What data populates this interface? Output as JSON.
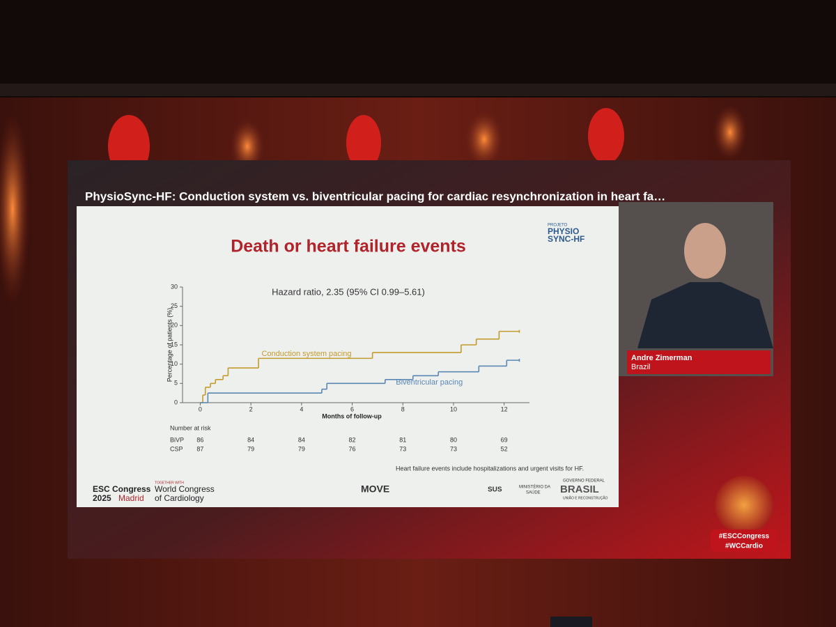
{
  "slide_header": "PhysioSync-HF: Conduction system vs. biventricular pacing for cardiac resynchronization in heart fa…",
  "chart_data": {
    "type": "line",
    "drawstyle": "steps-post",
    "title": "Death or heart failure events",
    "annotation": "Hazard ratio, 2.35 (95% CI 0.99–5.61)",
    "x_label": "Months of follow-up",
    "y_label": "Percentage of patients (%)",
    "xlim": [
      -0.7,
      13.0
    ],
    "xticks": [
      0,
      2,
      4,
      6,
      8,
      10,
      12
    ],
    "ylim": [
      0,
      30
    ],
    "yticks": [
      0,
      5,
      10,
      15,
      20,
      25,
      30
    ],
    "grid": false,
    "series": [
      {
        "name": "Conduction system pacing",
        "color": "#c39a2c",
        "x": [
          0,
          0.1,
          0.2,
          0.4,
          0.6,
          0.9,
          1.1,
          2.3,
          6.8,
          10.3,
          10.9,
          11.8,
          12.6
        ],
        "values": [
          0,
          2,
          4,
          5,
          6,
          7,
          9,
          11.5,
          13,
          15,
          16.5,
          18.5,
          18.5
        ]
      },
      {
        "name": "Biventricular pacing",
        "color": "#5a86b3",
        "x": [
          0,
          0.3,
          4.8,
          5.0,
          7.3,
          8.4,
          9.4,
          11.0,
          12.1,
          12.6
        ],
        "values": [
          0,
          2.5,
          3.5,
          5,
          6,
          7,
          8,
          9.5,
          11,
          11
        ]
      }
    ],
    "footnote": "Heart failure events include hospitalizations and urgent visits for HF."
  },
  "risk_table": {
    "title": "Number at risk",
    "rows": [
      {
        "label": "BiVP",
        "values": [
          86,
          84,
          84,
          82,
          81,
          80,
          69
        ]
      },
      {
        "label": "CSP",
        "values": [
          87,
          79,
          79,
          76,
          73,
          73,
          52
        ]
      }
    ]
  },
  "logos": {
    "project_top": "PROJETO",
    "project_1": "PHYSIO",
    "project_2": "SYNC-HF",
    "esc_1": "ESC Congress",
    "esc_2": "2025",
    "esc_3": "Madrid",
    "wcc_0": "TOGETHER WITH",
    "wcc_1": "World Congress",
    "wcc_2": "of Cardiology",
    "move": "MOVE",
    "sus": "SUS",
    "ministry_1": "MINISTÉRIO DA",
    "ministry_2": "SAÚDE",
    "gov_1": "GOVERNO FEDERAL",
    "gov_2": "BRASIL",
    "gov_3": "UNIÃO E RECONSTRUÇÃO"
  },
  "speaker": {
    "name": "Andre Zimerman",
    "country": "Brazil"
  },
  "hashtags": [
    "#ESCCongress",
    "#WCCardio"
  ]
}
